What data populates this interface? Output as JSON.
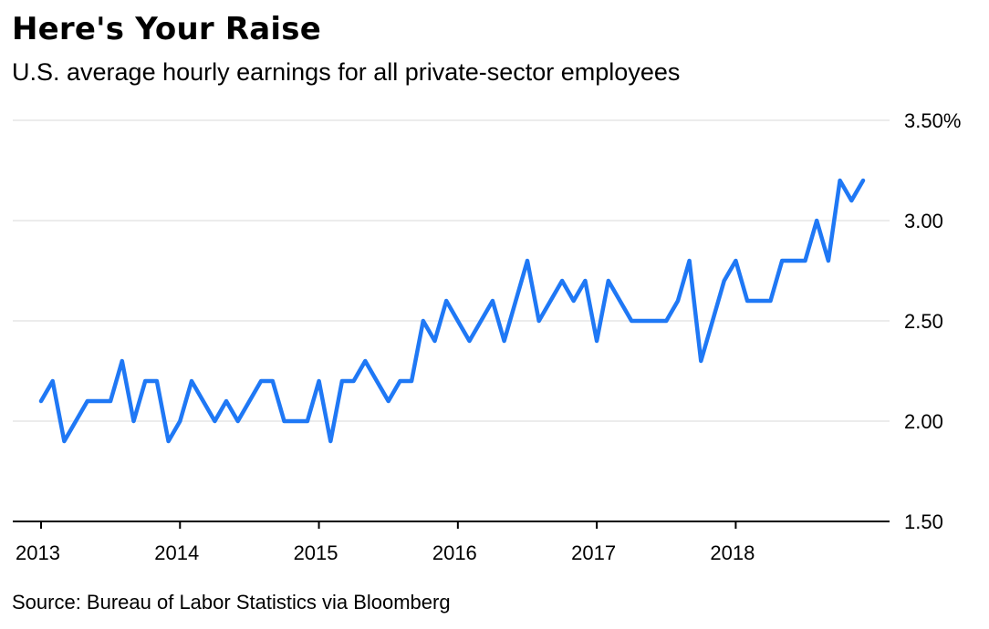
{
  "title": "Here's Your Raise",
  "subtitle": "U.S. average hourly earnings for all private-sector employees",
  "source": "Source: Bureau of Labor Statistics via Bloomberg",
  "colors": {
    "series": "#1f78f5",
    "grid": "#ececec",
    "axis": "#000000"
  },
  "chart_data": {
    "type": "line",
    "title": "Here's Your Raise",
    "subtitle": "U.S. average hourly earnings for all private-sector employees",
    "xlabel": "",
    "ylabel": "",
    "ylim": [
      1.5,
      3.5
    ],
    "xlim": [
      "2013-01",
      "2018-12"
    ],
    "grid": true,
    "y_axis_side": "right",
    "y_ticks": [
      1.5,
      2.0,
      2.5,
      3.0,
      3.5
    ],
    "y_tick_labels": [
      "1.50",
      "2.00",
      "2.50",
      "3.00",
      "3.50%"
    ],
    "x_ticks": [
      "2013-01",
      "2014-01",
      "2015-01",
      "2016-01",
      "2017-01",
      "2018-01"
    ],
    "x_tick_labels": [
      "2013",
      "2014",
      "2015",
      "2016",
      "2017",
      "2018"
    ],
    "series": [
      {
        "x": [
          "2013-01",
          "2013-02",
          "2013-03",
          "2013-04",
          "2013-05",
          "2013-06",
          "2013-07",
          "2013-08",
          "2013-09",
          "2013-10",
          "2013-11",
          "2013-12",
          "2014-01",
          "2014-02",
          "2014-03",
          "2014-04",
          "2014-05",
          "2014-06",
          "2014-07",
          "2014-08",
          "2014-09",
          "2014-10",
          "2014-11",
          "2014-12",
          "2015-01",
          "2015-02",
          "2015-03",
          "2015-04",
          "2015-05",
          "2015-06",
          "2015-07",
          "2015-08",
          "2015-09",
          "2015-10",
          "2015-11",
          "2015-12",
          "2016-01",
          "2016-02",
          "2016-03",
          "2016-04",
          "2016-05",
          "2016-06",
          "2016-07",
          "2016-08",
          "2016-09",
          "2016-10",
          "2016-11",
          "2016-12",
          "2017-01",
          "2017-02",
          "2017-03",
          "2017-04",
          "2017-05",
          "2017-06",
          "2017-07",
          "2017-08",
          "2017-09",
          "2017-10",
          "2017-11",
          "2017-12",
          "2018-01",
          "2018-02",
          "2018-03",
          "2018-04",
          "2018-05",
          "2018-06",
          "2018-07",
          "2018-08",
          "2018-09",
          "2018-10",
          "2018-11",
          "2018-12"
        ],
        "values": [
          2.1,
          2.2,
          1.9,
          2.0,
          2.1,
          2.1,
          2.1,
          2.3,
          2.0,
          2.2,
          2.2,
          1.9,
          2.0,
          2.2,
          2.1,
          2.0,
          2.1,
          2.0,
          2.1,
          2.2,
          2.2,
          2.0,
          2.0,
          2.0,
          2.2,
          1.9,
          2.2,
          2.2,
          2.3,
          2.2,
          2.1,
          2.2,
          2.2,
          2.5,
          2.4,
          2.6,
          2.5,
          2.4,
          2.5,
          2.6,
          2.4,
          2.6,
          2.8,
          2.5,
          2.6,
          2.7,
          2.6,
          2.7,
          2.4,
          2.7,
          2.6,
          2.5,
          2.5,
          2.5,
          2.5,
          2.6,
          2.8,
          2.3,
          2.5,
          2.7,
          2.8,
          2.6,
          2.6,
          2.6,
          2.8,
          2.8,
          2.8,
          3.0,
          2.8,
          3.2,
          3.1,
          3.2
        ]
      }
    ]
  }
}
